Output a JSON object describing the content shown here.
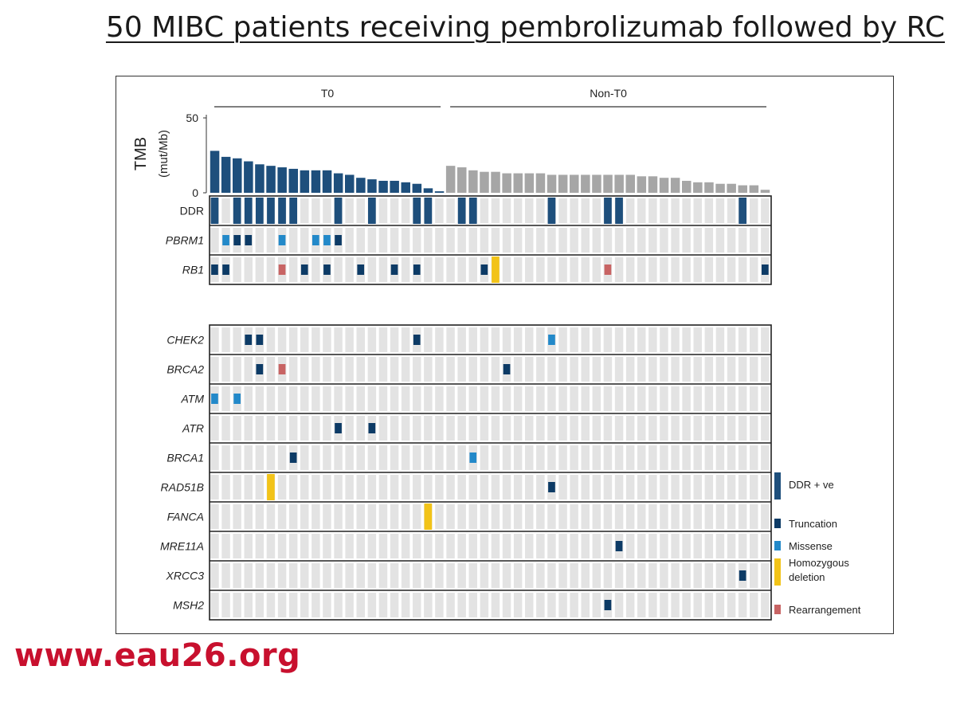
{
  "slide": {
    "title": "50 MIBC patients receiving pembrolizumab followed by RC",
    "website": "www.eau26.org"
  },
  "chart_data": {
    "type": "bar",
    "groups": [
      {
        "label": "T0",
        "n": 21
      },
      {
        "label": "Non-T0",
        "n": 29
      }
    ],
    "tmb": {
      "ylabel": "TMB",
      "ylabel_unit": "(mut/Mb)",
      "yticks": [
        "0",
        "50"
      ],
      "ylim": [
        0,
        50
      ],
      "t0_values": [
        28,
        24,
        23,
        21,
        19,
        18,
        17,
        16,
        15,
        15,
        15,
        13,
        12,
        10,
        9,
        8,
        8,
        7,
        6,
        3,
        1
      ],
      "non_t0_values": [
        18,
        17,
        15,
        14,
        14,
        13,
        13,
        13,
        13,
        12,
        12,
        12,
        12,
        12,
        12,
        12,
        12,
        11,
        11,
        10,
        10,
        8,
        7,
        7,
        6,
        6,
        5,
        5,
        2
      ]
    },
    "colors": {
      "ddr_positive": "#1e4f7c",
      "truncation": "#0d3b66",
      "missense": "#2389c9",
      "homozygous_deletion": "#f2c318",
      "rearrangement": "#c86464",
      "t0_bar": "#1e4f7c",
      "non_t0_bar": "#a6a6a6",
      "cell_bg": "#e3e3e3"
    },
    "rows_top": [
      {
        "gene": "DDR",
        "italic": false,
        "alterations": [
          [
            0,
            "ddr"
          ],
          [
            2,
            "ddr"
          ],
          [
            3,
            "ddr"
          ],
          [
            4,
            "ddr"
          ],
          [
            5,
            "ddr"
          ],
          [
            6,
            "ddr"
          ],
          [
            7,
            "ddr"
          ],
          [
            11,
            "ddr"
          ],
          [
            14,
            "ddr"
          ],
          [
            18,
            "ddr"
          ],
          [
            19,
            "ddr"
          ],
          [
            22,
            "ddr"
          ],
          [
            23,
            "ddr"
          ],
          [
            30,
            "ddr"
          ],
          [
            35,
            "ddr"
          ],
          [
            36,
            "ddr"
          ],
          [
            47,
            "ddr"
          ]
        ]
      },
      {
        "gene": "PBRM1",
        "italic": true,
        "alterations": [
          [
            1,
            "missense"
          ],
          [
            2,
            "truncation"
          ],
          [
            3,
            "truncation"
          ],
          [
            6,
            "missense"
          ],
          [
            9,
            "missense"
          ],
          [
            10,
            "missense"
          ],
          [
            11,
            "truncation"
          ]
        ]
      },
      {
        "gene": "RB1",
        "italic": true,
        "alterations": [
          [
            0,
            "truncation"
          ],
          [
            1,
            "truncation"
          ],
          [
            6,
            "rearrangement"
          ],
          [
            8,
            "truncation"
          ],
          [
            10,
            "truncation"
          ],
          [
            13,
            "truncation"
          ],
          [
            16,
            "truncation"
          ],
          [
            18,
            "truncation"
          ],
          [
            24,
            "truncation"
          ],
          [
            25,
            "deletion"
          ],
          [
            35,
            "rearrangement"
          ],
          [
            49,
            "truncation"
          ]
        ]
      }
    ],
    "rows_bottom": [
      {
        "gene": "CHEK2",
        "italic": true,
        "alterations": [
          [
            3,
            "truncation"
          ],
          [
            4,
            "truncation"
          ],
          [
            18,
            "truncation"
          ],
          [
            30,
            "missense"
          ]
        ]
      },
      {
        "gene": "BRCA2",
        "italic": true,
        "alterations": [
          [
            4,
            "truncation"
          ],
          [
            6,
            "rearrangement"
          ],
          [
            26,
            "truncation"
          ]
        ]
      },
      {
        "gene": "ATM",
        "italic": true,
        "alterations": [
          [
            0,
            "missense"
          ],
          [
            2,
            "missense"
          ]
        ]
      },
      {
        "gene": "ATR",
        "italic": true,
        "alterations": [
          [
            11,
            "truncation"
          ],
          [
            14,
            "truncation"
          ]
        ]
      },
      {
        "gene": "BRCA1",
        "italic": true,
        "alterations": [
          [
            7,
            "truncation"
          ],
          [
            23,
            "missense"
          ]
        ]
      },
      {
        "gene": "RAD51B",
        "italic": true,
        "alterations": [
          [
            5,
            "deletion"
          ],
          [
            30,
            "truncation"
          ]
        ]
      },
      {
        "gene": "FANCA",
        "italic": true,
        "alterations": [
          [
            19,
            "deletion"
          ]
        ]
      },
      {
        "gene": "MRE11A",
        "italic": true,
        "alterations": [
          [
            36,
            "truncation"
          ]
        ]
      },
      {
        "gene": "XRCC3",
        "italic": true,
        "alterations": [
          [
            47,
            "truncation"
          ]
        ]
      },
      {
        "gene": "MSH2",
        "italic": true,
        "alterations": [
          [
            35,
            "truncation"
          ]
        ]
      }
    ],
    "legend": [
      {
        "key": "ddr",
        "lines": [
          "DDR + ve"
        ]
      },
      {
        "key": "truncation",
        "lines": [
          "Truncation"
        ]
      },
      {
        "key": "missense",
        "lines": [
          "Missense"
        ]
      },
      {
        "key": "deletion",
        "lines": [
          "Homozygous",
          "deletion"
        ]
      },
      {
        "key": "rearrangement",
        "lines": [
          "Rearrangement"
        ]
      }
    ]
  }
}
